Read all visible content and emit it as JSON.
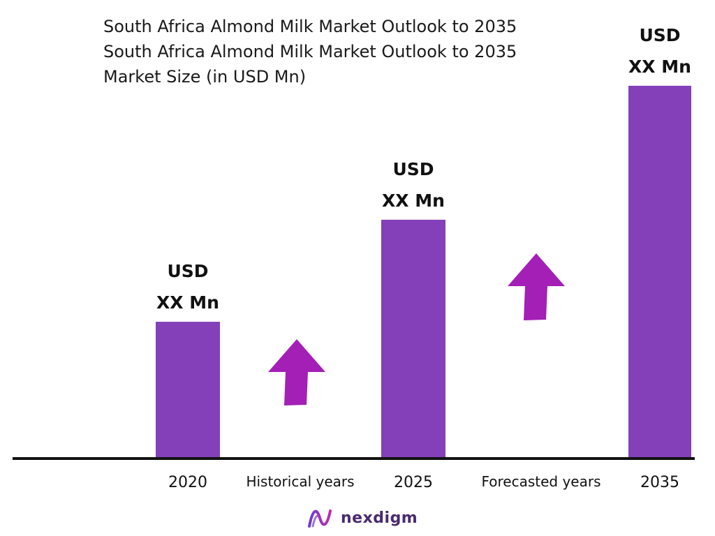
{
  "header": {
    "title": "South Africa Almond Milk Market Outlook to 2035",
    "title_repeat": "South Africa Almond Milk Market Outlook to 2035",
    "subtitle": "Market Size (in USD Mn)"
  },
  "colors": {
    "bar": "#8340B8",
    "arrow": "#A31FB6",
    "axis": "#111111"
  },
  "chart_data": {
    "type": "bar",
    "title": "South Africa Almond Milk Market Outlook to 2035",
    "ylabel": "Market Size (in USD Mn)",
    "categories": [
      "2020",
      "2025",
      "2035"
    ],
    "values": [
      197,
      344,
      537
    ],
    "ylim": [
      0,
      560
    ],
    "data_labels": [
      {
        "line1": "USD",
        "line2": "XX Mn"
      },
      {
        "line1": "USD",
        "line2": "XX Mn"
      },
      {
        "line1": "USD",
        "line2": "XX Mn"
      }
    ],
    "periods": [
      {
        "label": "Historical years",
        "arrow": "up"
      },
      {
        "label": "Forecasted years",
        "arrow": "up"
      }
    ],
    "grid": false
  },
  "logo": {
    "text": "nexdigm",
    "icon": "nexdigm-wave-icon"
  }
}
